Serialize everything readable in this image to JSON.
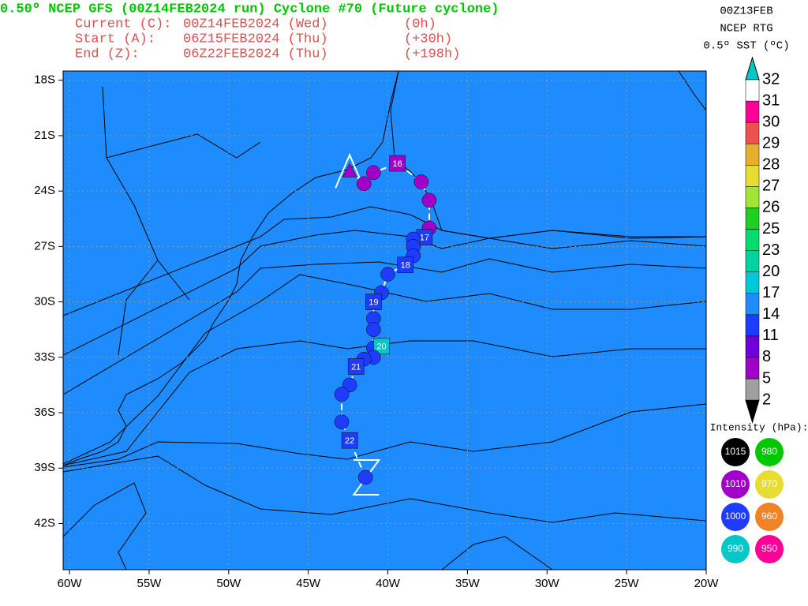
{
  "header": {
    "title": "0.50º NCEP GFS (00Z14FEB2024 run) Cyclone #70 (Future cyclone)",
    "lines": [
      {
        "label": "Current (C):",
        "date": "00Z14FEB2024 (Wed)",
        "offset": "(0h)"
      },
      {
        "label": "Start (A):",
        "date": "06Z15FEB2024 (Thu)",
        "offset": "(+30h)"
      },
      {
        "label": "End (Z):",
        "date": "06Z22FEB2024 (Thu)",
        "offset": "(+198h)"
      }
    ]
  },
  "sst_info": [
    "00Z13FEB",
    "NCEP RTG",
    "0.5º SST (ºC)"
  ],
  "map": {
    "lon_range": [
      -60.4,
      -20
    ],
    "lat_range": [
      -17.5,
      -44.5
    ],
    "xticks": [
      {
        "value": -60,
        "label": "60W"
      },
      {
        "value": -55,
        "label": "55W"
      },
      {
        "value": -50,
        "label": "50W"
      },
      {
        "value": -45,
        "label": "45W"
      },
      {
        "value": -40,
        "label": "40W"
      },
      {
        "value": -35,
        "label": "35W"
      },
      {
        "value": -30,
        "label": "30W"
      },
      {
        "value": -25,
        "label": "25W"
      },
      {
        "value": -20,
        "label": "20W"
      }
    ],
    "yticks": [
      {
        "value": -18,
        "label": "18S"
      },
      {
        "value": -21,
        "label": "21S"
      },
      {
        "value": -24,
        "label": "24S"
      },
      {
        "value": -27,
        "label": "27S"
      },
      {
        "value": -30,
        "label": "30S"
      },
      {
        "value": -33,
        "label": "33S"
      },
      {
        "value": -36,
        "label": "36S"
      },
      {
        "value": -39,
        "label": "39S"
      },
      {
        "value": -42,
        "label": "42S"
      }
    ],
    "grid": true
  },
  "sst_colorbar": {
    "levels": [
      2,
      5,
      8,
      11,
      14,
      17,
      20,
      23,
      25,
      26,
      27,
      28,
      29,
      30,
      31,
      32
    ],
    "colors": [
      "#000000",
      "#a0a0a0",
      "#a000c8",
      "#6e00dc",
      "#1e3cff",
      "#1e8cff",
      "#00c8dc",
      "#00d2a0",
      "#00dc6e",
      "#20d020",
      "#a0e632",
      "#e6dc32",
      "#e6af2d",
      "#f05050",
      "#ff0096",
      "#ffffff",
      "#00c8c8"
    ]
  },
  "intensity_legend": {
    "title": "Intensity (hPa):",
    "items": [
      {
        "value": 1015,
        "color": "#000000"
      },
      {
        "value": 980,
        "color": "#00c800"
      },
      {
        "value": 1010,
        "color": "#a000c8"
      },
      {
        "value": 970,
        "color": "#e6dc32"
      },
      {
        "value": 1000,
        "color": "#1e3cff"
      },
      {
        "value": 960,
        "color": "#f08228"
      },
      {
        "value": 990,
        "color": "#00c8c8"
      },
      {
        "value": 950,
        "color": "#ff0096"
      }
    ]
  },
  "track": {
    "points": [
      {
        "lon": -42.4,
        "lat": -22.9,
        "intensity": 1010
      },
      {
        "lon": -41.5,
        "lat": -23.6,
        "intensity": 1010
      },
      {
        "lon": -40.9,
        "lat": -23.0,
        "intensity": 1010
      },
      {
        "lon": -39.4,
        "lat": -22.5,
        "intensity": 1010,
        "label": "16"
      },
      {
        "lon": -37.9,
        "lat": -23.5,
        "intensity": 1010
      },
      {
        "lon": -37.4,
        "lat": -24.5,
        "intensity": 1010
      },
      {
        "lon": -37.4,
        "lat": -26.0,
        "intensity": 1010
      },
      {
        "lon": -37.7,
        "lat": -26.5,
        "intensity": 1000,
        "label": "17"
      },
      {
        "lon": -38.4,
        "lat": -26.6,
        "intensity": 1000
      },
      {
        "lon": -38.4,
        "lat": -27.0,
        "intensity": 1000
      },
      {
        "lon": -38.4,
        "lat": -27.5,
        "intensity": 1000
      },
      {
        "lon": -38.9,
        "lat": -28.0,
        "intensity": 1000,
        "label": "18"
      },
      {
        "lon": -40.0,
        "lat": -28.5,
        "intensity": 1000
      },
      {
        "lon": -40.4,
        "lat": -29.5,
        "intensity": 1000
      },
      {
        "lon": -40.9,
        "lat": -30.0,
        "intensity": 1000,
        "label": "19"
      },
      {
        "lon": -40.9,
        "lat": -30.9,
        "intensity": 1000
      },
      {
        "lon": -40.9,
        "lat": -31.5,
        "intensity": 1000
      },
      {
        "lon": -40.9,
        "lat": -32.5,
        "intensity": 1000
      },
      {
        "lon": -40.4,
        "lat": -32.4,
        "intensity": 990,
        "label": "20"
      },
      {
        "lon": -40.9,
        "lat": -33.0,
        "intensity": 1000
      },
      {
        "lon": -41.5,
        "lat": -33.1,
        "intensity": 1000
      },
      {
        "lon": -42.0,
        "lat": -33.5,
        "intensity": 1000,
        "label": "21"
      },
      {
        "lon": -42.4,
        "lat": -34.5,
        "intensity": 1000
      },
      {
        "lon": -42.9,
        "lat": -35.0,
        "intensity": 1000
      },
      {
        "lon": -42.9,
        "lat": -36.5,
        "intensity": 1000
      },
      {
        "lon": -42.4,
        "lat": -37.5,
        "intensity": 1000,
        "label": "22"
      },
      {
        "lon": -41.4,
        "lat": -39.5,
        "intensity": 1000
      }
    ]
  }
}
